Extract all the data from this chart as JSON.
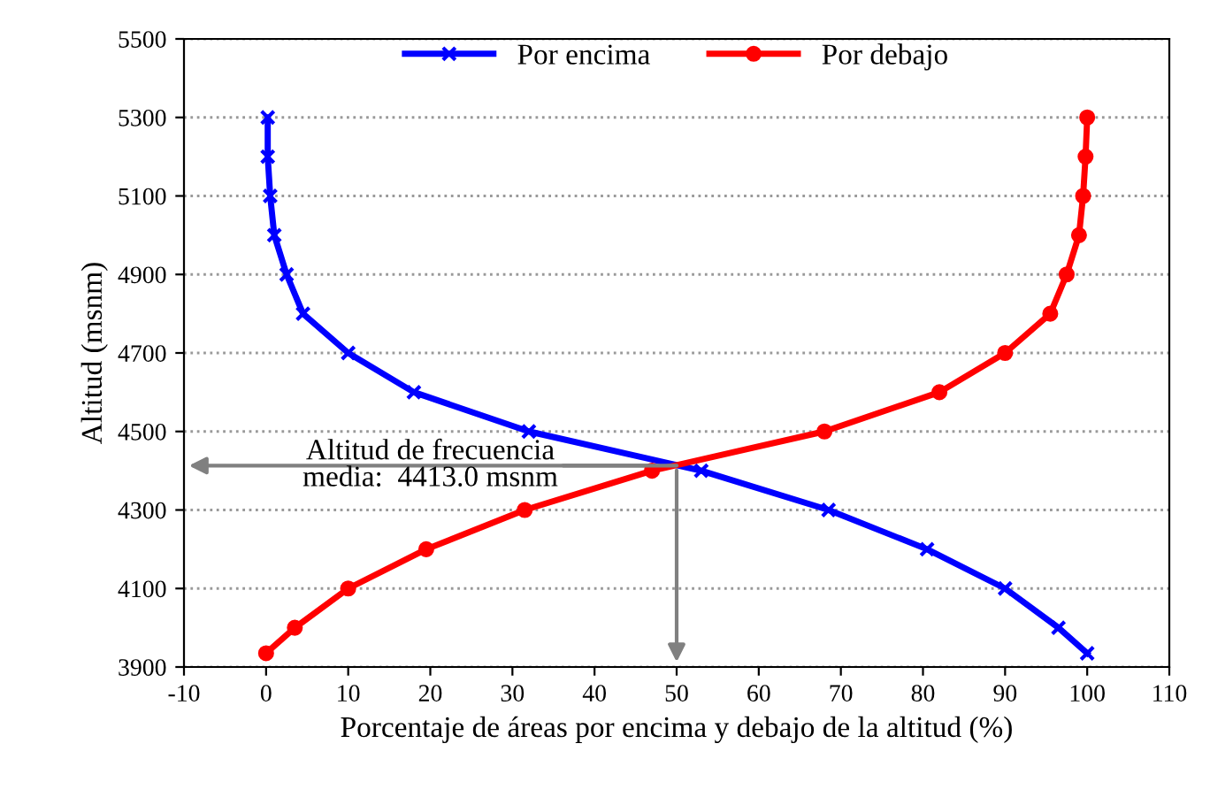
{
  "chart_data": {
    "type": "line",
    "xlabel": "Porcentaje de áreas por encima y debajo de la altitud (%)",
    "ylabel": "Altitud (msnm)",
    "xlim": [
      -10,
      110
    ],
    "xticks": [
      -10,
      0,
      10,
      20,
      30,
      40,
      50,
      60,
      70,
      80,
      90,
      100,
      110
    ],
    "ylim": [
      3900,
      5500
    ],
    "yticks": [
      3900,
      4100,
      4300,
      4500,
      4700,
      4900,
      5100,
      5300,
      5500
    ],
    "grid": "y",
    "legend": "top",
    "series": [
      {
        "name": "Por encima",
        "color": "#0000ff",
        "marker": "cross",
        "x": [
          100,
          96.5,
          90,
          80.5,
          68.5,
          53,
          32,
          18,
          10,
          4.5,
          2.5,
          1,
          0.5,
          0.2,
          0.2
        ],
        "values": [
          3935,
          4000,
          4100,
          4200,
          4300,
          4400,
          4500,
          4600,
          4700,
          4800,
          4900,
          5000,
          5100,
          5200,
          5300
        ]
      },
      {
        "name": "Por debajo",
        "color": "#ff0000",
        "marker": "circle",
        "x": [
          0,
          3.5,
          10,
          19.5,
          31.5,
          47,
          68,
          82,
          90,
          95.5,
          97.5,
          99,
          99.5,
          99.8,
          100
        ],
        "values": [
          3935,
          4000,
          4100,
          4200,
          4300,
          4400,
          4500,
          4600,
          4700,
          4800,
          4900,
          5000,
          5100,
          5200,
          5300
        ]
      }
    ],
    "annotations": [
      {
        "text": "Altitud de frecuencia\nmedia:  4413.0 msnm",
        "x": 50,
        "y": 4413
      }
    ]
  }
}
